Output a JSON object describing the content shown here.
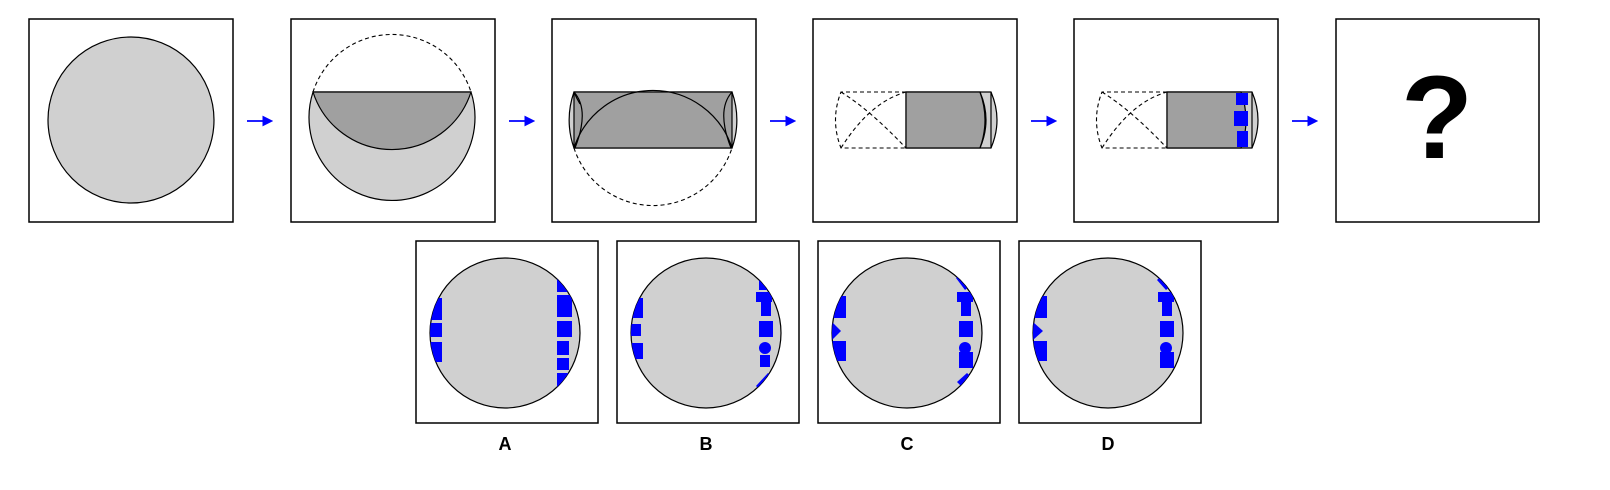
{
  "question_mark": "?",
  "options": [
    {
      "label": "A"
    },
    {
      "label": "B"
    },
    {
      "label": "C"
    },
    {
      "label": "D"
    }
  ],
  "colors": {
    "paper": "#d0d0d0",
    "folded_layer": "#a0a0a0",
    "punch_holes": "#0000ff",
    "arrow": "#0000ff",
    "outline": "#000000"
  },
  "sequence": {
    "steps": 5,
    "arrows": 5,
    "last_step_marks": [
      "square",
      "square",
      "square"
    ]
  }
}
